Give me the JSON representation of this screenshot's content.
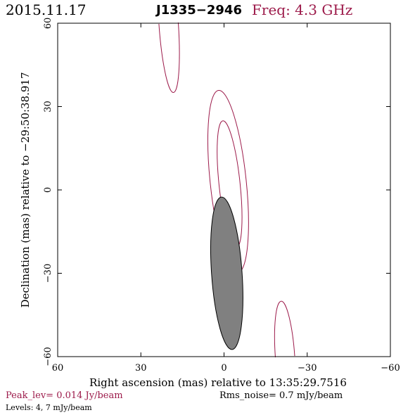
{
  "header": {
    "date": "2015.11.17",
    "source": "J1335−2946",
    "frequency": "Freq: 4.3 GHz"
  },
  "footer": {
    "peak_level": "Peak_lev= 0.014 Jy/beam",
    "rms_noise": "Rms_noise= 0.7 mJy/beam",
    "levels": "Levels: 4, 7 mJy/beam"
  },
  "colors": {
    "contour": "#9c1a4a",
    "beam_fill": "#808080",
    "axes": "#000000"
  },
  "chart_data": {
    "type": "contour",
    "title": "",
    "xlabel": "Right ascension (mas) relative to 13:35:29.7516",
    "ylabel": "Declination (mas) relative to −29:50:38.917",
    "xlim": [
      60,
      -60
    ],
    "ylim": [
      -60,
      60
    ],
    "xticks": [
      60,
      30,
      0,
      -30,
      -60
    ],
    "xtick_labels": [
      "60",
      "30",
      "0",
      "−30",
      "−60"
    ],
    "yticks": [
      -60,
      -30,
      0,
      30,
      60
    ],
    "ytick_labels": [
      "−60",
      "−30",
      "0",
      "30",
      "60"
    ],
    "contour_levels_mJy": [
      4,
      7
    ],
    "contours": [
      {
        "level": 4,
        "cx": -1.5,
        "cy": 3,
        "rx": 6.5,
        "ry": 33,
        "angle_deg": -6
      },
      {
        "level": 7,
        "cx": -2,
        "cy": 2,
        "rx": 3.8,
        "ry": 23,
        "angle_deg": -6
      },
      {
        "level": 4,
        "cx": 20,
        "cy": 60,
        "rx": 3.5,
        "ry": 25,
        "angle_deg": -4
      },
      {
        "level": 4,
        "cx": -22,
        "cy": -60,
        "rx": 3.5,
        "ry": 20,
        "angle_deg": -4
      }
    ],
    "beam": {
      "cx": -1,
      "cy": -30,
      "rx": 5.5,
      "ry": 27.5,
      "angle_deg": -4
    }
  }
}
